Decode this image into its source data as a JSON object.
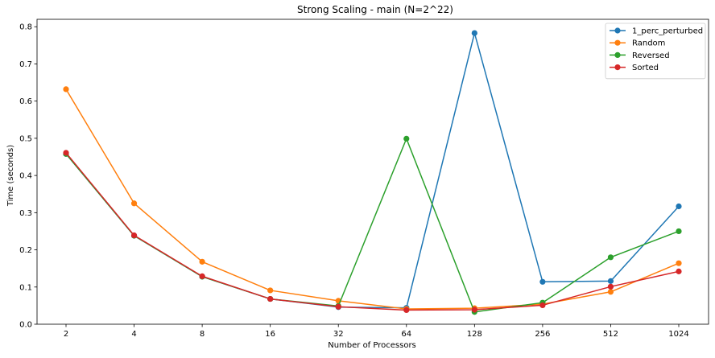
{
  "chart_data": {
    "type": "line",
    "title": "Strong Scaling - main (N=2^22)",
    "xlabel": "Number of Processors",
    "ylabel": "Time (seconds)",
    "categories": [
      "2",
      "4",
      "8",
      "16",
      "32",
      "64",
      "128",
      "256",
      "512",
      "1024"
    ],
    "ylim": [
      0.0,
      0.82
    ],
    "yticks": [
      0.0,
      0.1,
      0.2,
      0.3,
      0.4,
      0.5,
      0.6,
      0.7,
      0.8
    ],
    "ytick_labels": [
      "0.0",
      "0.1",
      "0.2",
      "0.3",
      "0.4",
      "0.5",
      "0.6",
      "0.7",
      "0.8"
    ],
    "grid": false,
    "legend_position": "top-right",
    "series": [
      {
        "name": "1_perc_perturbed",
        "color": "#1f77b4",
        "values": [
          0.458,
          0.238,
          0.128,
          0.068,
          0.046,
          0.044,
          0.783,
          0.114,
          0.116,
          0.317
        ]
      },
      {
        "name": "Random",
        "color": "#ff7f0e",
        "values": [
          0.632,
          0.325,
          0.168,
          0.091,
          0.063,
          0.041,
          0.043,
          0.054,
          0.087,
          0.164
        ]
      },
      {
        "name": "Reversed",
        "color": "#2ca02c",
        "values": [
          0.458,
          0.238,
          0.128,
          0.068,
          0.049,
          0.499,
          0.033,
          0.058,
          0.18,
          0.25
        ]
      },
      {
        "name": "Sorted",
        "color": "#d62728",
        "values": [
          0.461,
          0.239,
          0.129,
          0.068,
          0.047,
          0.038,
          0.039,
          0.051,
          0.101,
          0.142
        ]
      }
    ]
  }
}
